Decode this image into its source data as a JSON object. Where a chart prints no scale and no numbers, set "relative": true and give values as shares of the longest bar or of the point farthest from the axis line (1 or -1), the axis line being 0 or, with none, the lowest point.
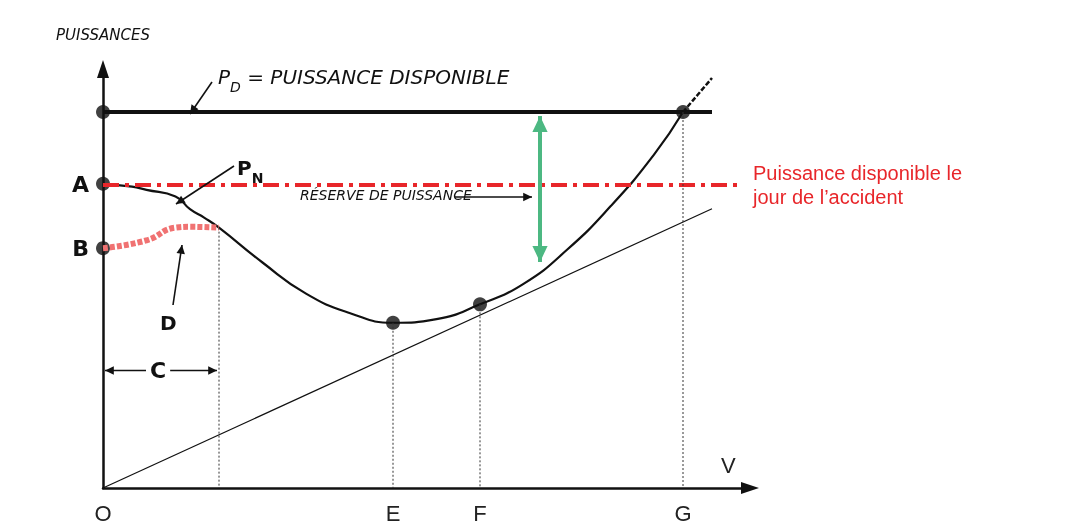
{
  "chart_data": {
    "type": "line",
    "relative": true,
    "xlabel": "V",
    "ylabel": "PUISSANCES",
    "categories": [
      "O",
      null,
      null,
      null,
      null,
      null,
      null,
      null,
      null,
      null,
      null,
      null,
      null,
      null,
      null,
      null,
      null,
      null,
      null,
      null,
      "E",
      null,
      null,
      null,
      null,
      null,
      "F",
      null,
      null,
      null,
      null,
      null,
      null,
      null,
      null,
      null,
      null,
      null,
      null,
      null,
      "G",
      null,
      null,
      null,
      null
    ],
    "series": [
      {
        "color": "#111111",
        "line_style": "solid",
        "values": [
          0.917,
          0.917,
          0.917,
          0.917,
          0.917,
          0.917,
          0.917,
          0.917,
          0.917,
          0.917,
          0.917,
          0.917,
          0.917,
          0.917,
          0.917,
          0.917,
          0.917,
          0.917,
          0.917,
          0.917,
          0.917,
          0.917,
          0.917,
          0.917,
          0.917,
          0.917,
          0.917,
          0.917,
          0.917,
          0.917,
          0.917,
          0.917,
          0.917,
          0.917,
          0.917,
          0.917,
          0.917,
          0.917,
          0.917,
          0.917,
          0.917,
          0.917,
          0.917,
          null,
          null
        ]
      },
      {
        "color": "#111111",
        "line_style": "solid",
        "values": [
          0.742,
          null,
          0.735,
          0.727,
          null,
          0.711,
          0.68,
          0.659,
          0.635,
          null,
          null,
          0.55,
          null,
          null,
          0.474,
          null,
          null,
          0.427,
          null,
          null,
          0.403,
          null,
          null,
          0.412,
          null,
          null,
          0.448,
          null,
          null,
          0.498,
          null,
          null,
          0.581,
          null,
          null,
          0.687,
          null,
          null,
          0.813,
          null,
          0.917,
          null,
          null,
          null,
          null
        ]
      },
      {
        "color": "#111111",
        "line_style": "dotted",
        "values": [
          null,
          null,
          null,
          null,
          null,
          null,
          null,
          null,
          null,
          null,
          null,
          null,
          null,
          null,
          null,
          null,
          null,
          null,
          null,
          null,
          null,
          null,
          null,
          null,
          null,
          null,
          null,
          null,
          null,
          null,
          null,
          null,
          null,
          null,
          null,
          null,
          null,
          null,
          null,
          null,
          0.917,
          null,
          1.0,
          null,
          null
        ]
      },
      {
        "color": "#111111",
        "line_style": "solid",
        "values": [
          0,
          null,
          null,
          null,
          null,
          null,
          null,
          null,
          null,
          null,
          null,
          null,
          null,
          null,
          null,
          null,
          null,
          null,
          null,
          null,
          null,
          null,
          null,
          null,
          null,
          null,
          null,
          null,
          null,
          null,
          null,
          null,
          null,
          null,
          null,
          null,
          null,
          null,
          null,
          null,
          null,
          null,
          0.681,
          null,
          null
        ]
      },
      {
        "color": "#f07272",
        "line_style": "dotted",
        "values": [
          0.585,
          null,
          null,
          0.604,
          null,
          0.635,
          0.637,
          null,
          0.635,
          null,
          null,
          null,
          null,
          null,
          null,
          null,
          null,
          null,
          null,
          null,
          null,
          null,
          null,
          null,
          null,
          null,
          null,
          null,
          null,
          null,
          null,
          null,
          null,
          null,
          null,
          null,
          null,
          null,
          null,
          null,
          null,
          null,
          null,
          null,
          null
        ]
      },
      {
        "type": "scatter",
        "color": "#111111",
        "marker": "circle",
        "x": [
          "O",
          "O",
          "O",
          "E",
          "F",
          "G"
        ],
        "values": [
          0.917,
          0.742,
          0.585,
          0.403,
          0.448,
          0.917
        ]
      }
    ],
    "ref_lines": [
      {
        "axis": "y",
        "value": 0.742,
        "label": "Puissance disponible le jour de l’accident",
        "color": "#e8262a",
        "line_style": "dashed"
      }
    ],
    "annotations": [
      "P$_{D}$ = PUISSANCE DISPONIBLE",
      "P$_{N}$",
      "D",
      "C",
      "RÉSERVE DE PUISSANCE",
      {
        "text": "A",
        "x": "O",
        "y": 0.742
      },
      {
        "text": "B",
        "x": "O",
        "y": 0.585
      }
    ]
  }
}
